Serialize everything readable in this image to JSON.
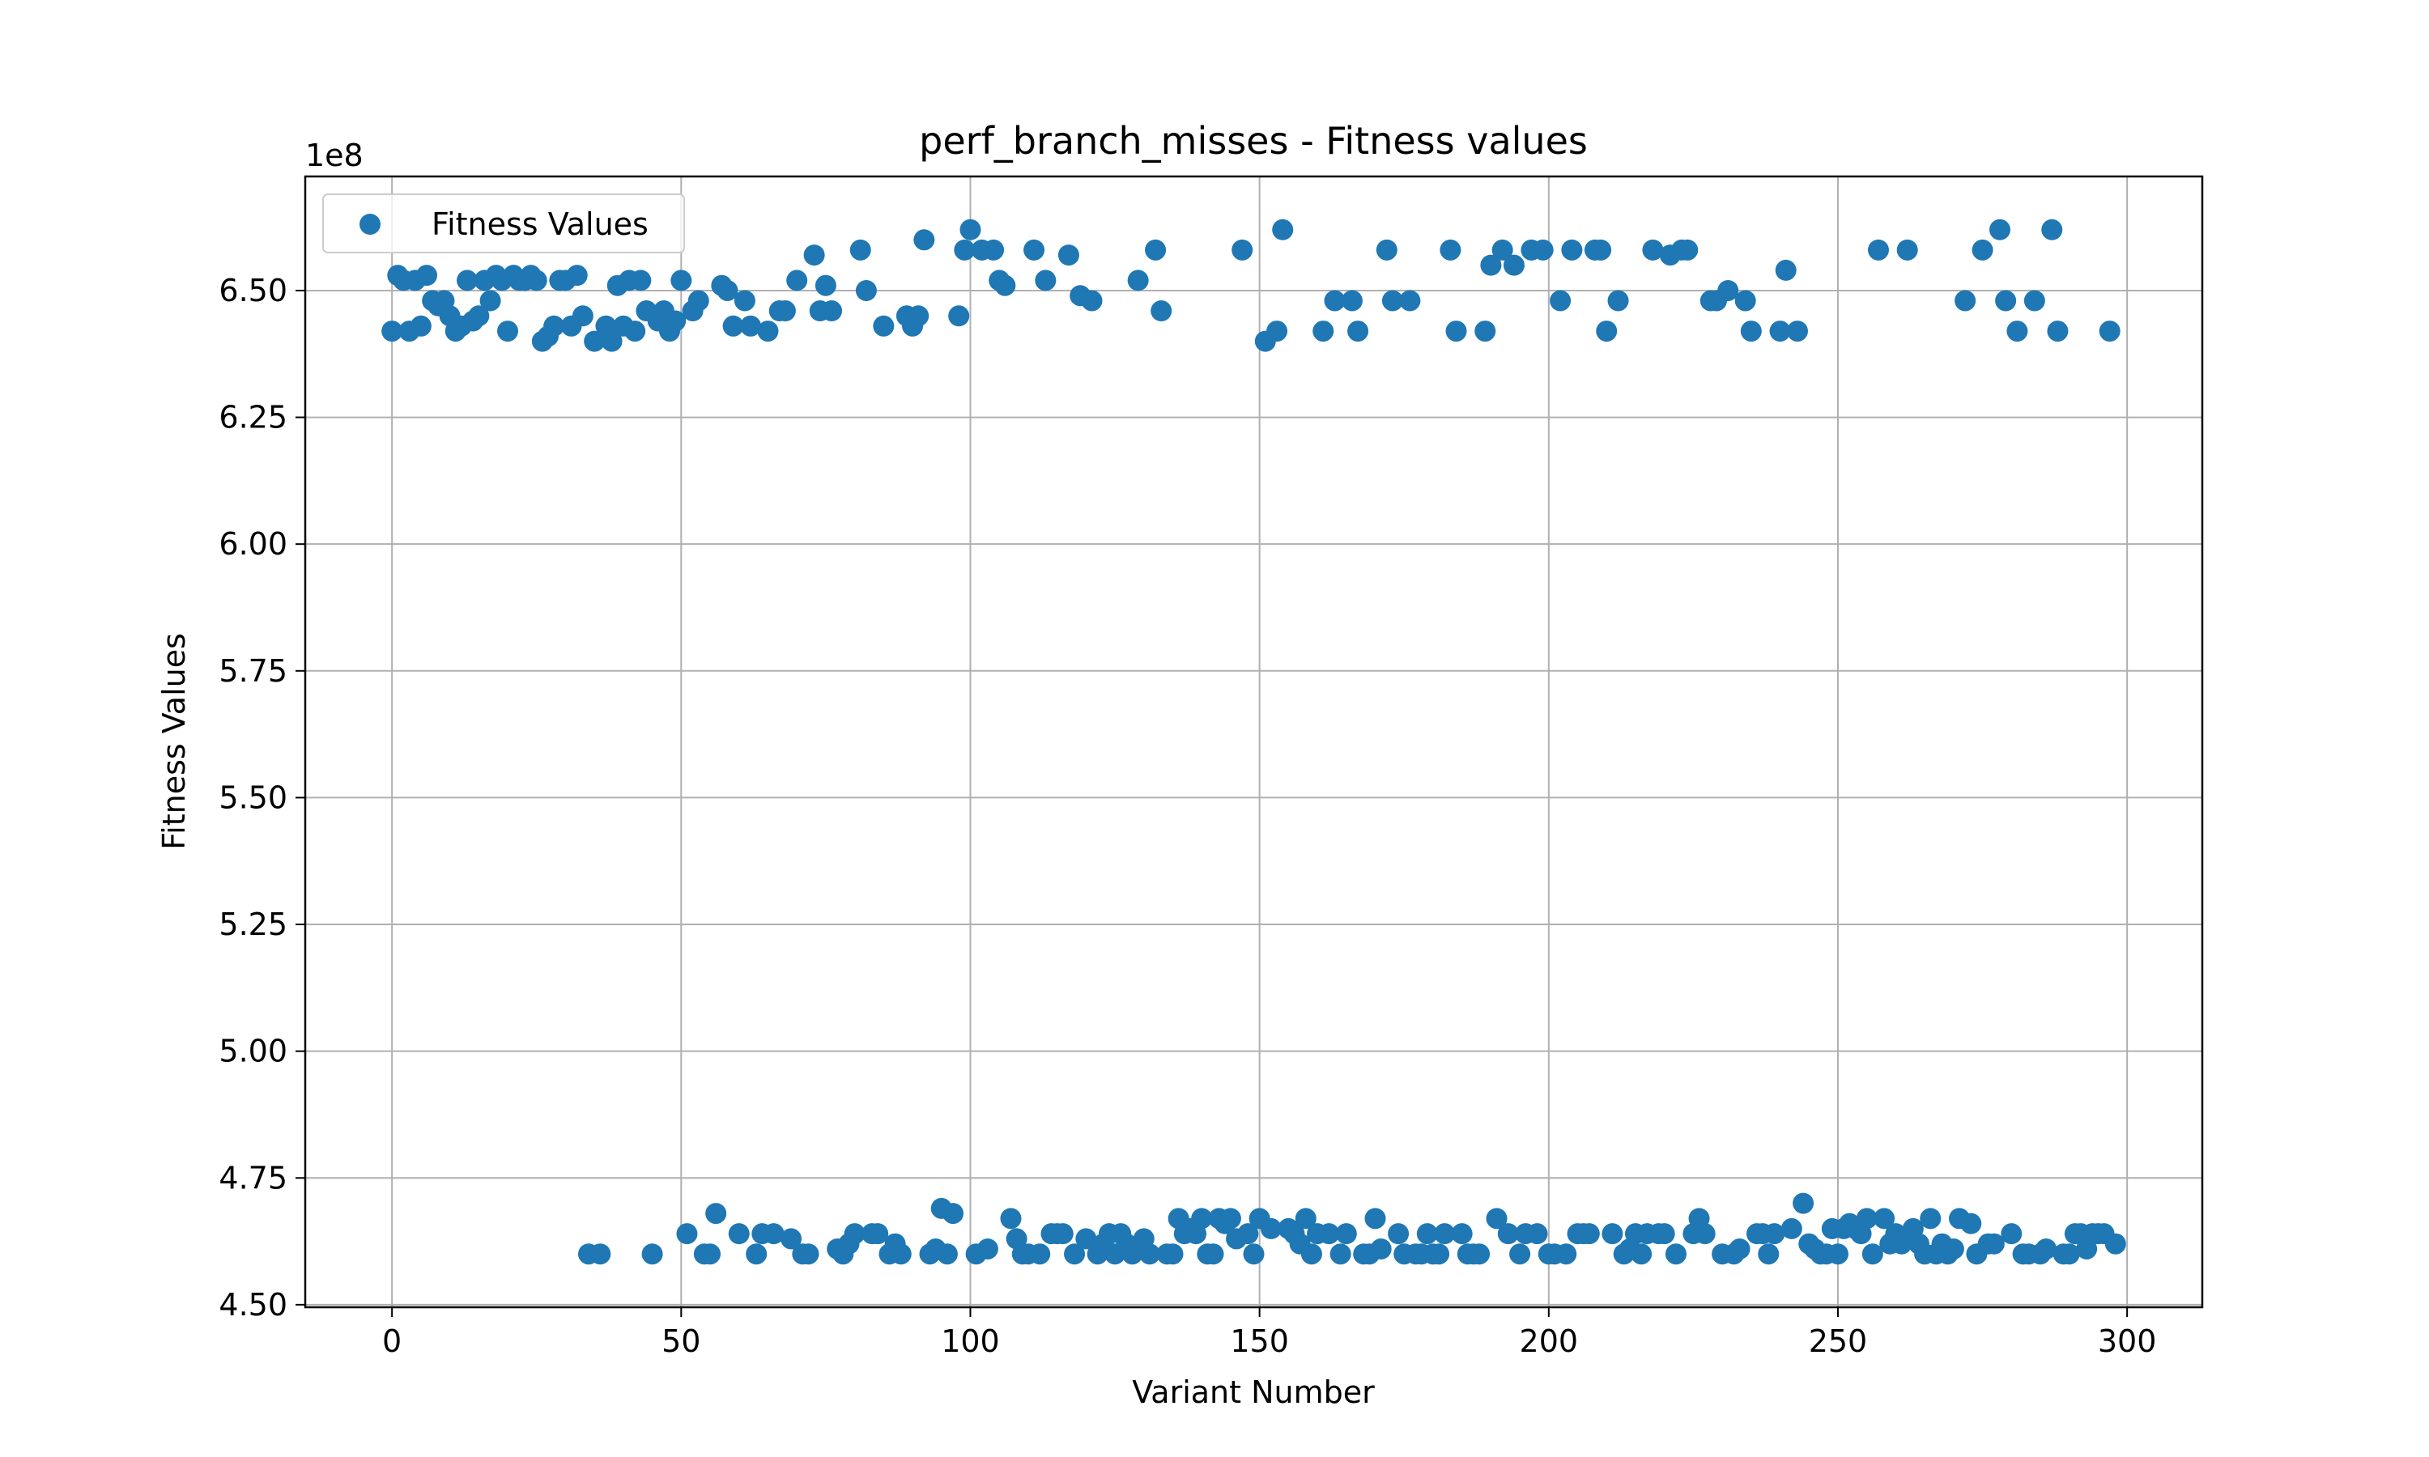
{
  "chart_data": {
    "type": "scatter",
    "title": "perf_branch_misses - Fitness values",
    "xlabel": "Variant Number",
    "ylabel": "Fitness Values",
    "y_offset_label": "1e8",
    "xlim": [
      -15,
      313
    ],
    "ylim": [
      4.495,
      6.725
    ],
    "x_ticks": [
      0,
      50,
      100,
      150,
      200,
      250,
      300
    ],
    "x_tick_labels": [
      "0",
      "50",
      "100",
      "150",
      "200",
      "250",
      "300"
    ],
    "y_ticks": [
      4.5,
      4.75,
      5.0,
      5.25,
      5.5,
      5.75,
      6.0,
      6.25,
      6.5
    ],
    "y_tick_labels": [
      "4.50",
      "4.75",
      "5.00",
      "5.25",
      "5.50",
      "5.75",
      "6.00",
      "6.25",
      "6.50"
    ],
    "grid": true,
    "legend_position": "top-left",
    "series": [
      {
        "name": "Fitness Values",
        "color": "#1f77b4",
        "points": [
          [
            0,
            6.42
          ],
          [
            1,
            6.53
          ],
          [
            2,
            6.52
          ],
          [
            3,
            6.42
          ],
          [
            4,
            6.52
          ],
          [
            5,
            6.43
          ],
          [
            6,
            6.53
          ],
          [
            7,
            6.48
          ],
          [
            8,
            6.47
          ],
          [
            9,
            6.48
          ],
          [
            10,
            6.45
          ],
          [
            11,
            6.42
          ],
          [
            12,
            6.43
          ],
          [
            13,
            6.52
          ],
          [
            14,
            6.44
          ],
          [
            15,
            6.45
          ],
          [
            16,
            6.52
          ],
          [
            17,
            6.48
          ],
          [
            18,
            6.53
          ],
          [
            19,
            6.52
          ],
          [
            20,
            6.42
          ],
          [
            21,
            6.53
          ],
          [
            22,
            6.52
          ],
          [
            23,
            6.52
          ],
          [
            24,
            6.53
          ],
          [
            25,
            6.52
          ],
          [
            26,
            6.4
          ],
          [
            27,
            6.41
          ],
          [
            28,
            6.43
          ],
          [
            29,
            6.52
          ],
          [
            30,
            6.52
          ],
          [
            31,
            6.43
          ],
          [
            32,
            6.53
          ],
          [
            33,
            6.45
          ],
          [
            34,
            4.6
          ],
          [
            35,
            6.4
          ],
          [
            36,
            4.6
          ],
          [
            37,
            6.43
          ],
          [
            38,
            6.4
          ],
          [
            39,
            6.51
          ],
          [
            40,
            6.43
          ],
          [
            41,
            6.52
          ],
          [
            42,
            6.42
          ],
          [
            43,
            6.52
          ],
          [
            44,
            6.46
          ],
          [
            45,
            4.6
          ],
          [
            46,
            6.44
          ],
          [
            47,
            6.46
          ],
          [
            48,
            6.42
          ],
          [
            49,
            6.44
          ],
          [
            50,
            6.52
          ],
          [
            51,
            4.64
          ],
          [
            52,
            6.46
          ],
          [
            53,
            6.48
          ],
          [
            54,
            4.6
          ],
          [
            55,
            4.6
          ],
          [
            56,
            4.68
          ],
          [
            57,
            6.51
          ],
          [
            58,
            6.5
          ],
          [
            59,
            6.43
          ],
          [
            60,
            4.64
          ],
          [
            61,
            6.48
          ],
          [
            62,
            6.43
          ],
          [
            63,
            4.6
          ],
          [
            64,
            4.64
          ],
          [
            65,
            6.42
          ],
          [
            66,
            4.64
          ],
          [
            67,
            6.46
          ],
          [
            68,
            6.46
          ],
          [
            69,
            4.63
          ],
          [
            70,
            6.52
          ],
          [
            71,
            4.6
          ],
          [
            72,
            4.6
          ],
          [
            73,
            6.57
          ],
          [
            74,
            6.46
          ],
          [
            75,
            6.51
          ],
          [
            76,
            6.46
          ],
          [
            77,
            4.61
          ],
          [
            78,
            4.6
          ],
          [
            79,
            4.62
          ],
          [
            80,
            4.64
          ],
          [
            81,
            6.58
          ],
          [
            82,
            6.5
          ],
          [
            83,
            4.64
          ],
          [
            84,
            4.64
          ],
          [
            85,
            6.43
          ],
          [
            86,
            4.6
          ],
          [
            87,
            4.62
          ],
          [
            88,
            4.6
          ],
          [
            89,
            6.45
          ],
          [
            90,
            6.43
          ],
          [
            91,
            6.45
          ],
          [
            92,
            6.6
          ],
          [
            93,
            4.6
          ],
          [
            94,
            4.61
          ],
          [
            95,
            4.69
          ],
          [
            96,
            4.6
          ],
          [
            97,
            4.68
          ],
          [
            98,
            6.45
          ],
          [
            99,
            6.58
          ],
          [
            100,
            6.62
          ],
          [
            101,
            4.6
          ],
          [
            102,
            6.58
          ],
          [
            103,
            4.61
          ],
          [
            104,
            6.58
          ],
          [
            105,
            6.52
          ],
          [
            106,
            6.51
          ],
          [
            107,
            4.67
          ],
          [
            108,
            4.63
          ],
          [
            109,
            4.6
          ],
          [
            110,
            4.6
          ],
          [
            111,
            6.58
          ],
          [
            112,
            4.6
          ],
          [
            113,
            6.52
          ],
          [
            114,
            4.64
          ],
          [
            115,
            4.64
          ],
          [
            116,
            4.64
          ],
          [
            117,
            6.57
          ],
          [
            118,
            4.6
          ],
          [
            119,
            6.49
          ],
          [
            120,
            4.63
          ],
          [
            121,
            6.48
          ],
          [
            122,
            4.6
          ],
          [
            123,
            4.62
          ],
          [
            124,
            4.64
          ],
          [
            125,
            4.6
          ],
          [
            126,
            4.64
          ],
          [
            127,
            4.62
          ],
          [
            128,
            4.6
          ],
          [
            129,
            6.52
          ],
          [
            130,
            4.63
          ],
          [
            131,
            4.6
          ],
          [
            132,
            6.58
          ],
          [
            133,
            6.46
          ],
          [
            134,
            4.6
          ],
          [
            135,
            4.6
          ],
          [
            136,
            4.67
          ],
          [
            137,
            4.64
          ],
          [
            138,
            4.65
          ],
          [
            139,
            4.64
          ],
          [
            140,
            4.67
          ],
          [
            141,
            4.6
          ],
          [
            142,
            4.6
          ],
          [
            143,
            4.67
          ],
          [
            144,
            4.66
          ],
          [
            145,
            4.67
          ],
          [
            146,
            4.63
          ],
          [
            147,
            6.58
          ],
          [
            148,
            4.64
          ],
          [
            149,
            4.6
          ],
          [
            150,
            4.67
          ],
          [
            151,
            6.4
          ],
          [
            152,
            4.65
          ],
          [
            153,
            6.42
          ],
          [
            154,
            6.62
          ],
          [
            155,
            4.65
          ],
          [
            156,
            4.64
          ],
          [
            157,
            4.62
          ],
          [
            158,
            4.67
          ],
          [
            159,
            4.6
          ],
          [
            160,
            4.64
          ],
          [
            161,
            6.42
          ],
          [
            162,
            4.64
          ],
          [
            163,
            6.48
          ],
          [
            164,
            4.6
          ],
          [
            165,
            4.64
          ],
          [
            166,
            6.48
          ],
          [
            167,
            6.42
          ],
          [
            168,
            4.6
          ],
          [
            169,
            4.6
          ],
          [
            170,
            4.67
          ],
          [
            171,
            4.61
          ],
          [
            172,
            6.58
          ],
          [
            173,
            6.48
          ],
          [
            174,
            4.64
          ],
          [
            175,
            4.6
          ],
          [
            176,
            6.48
          ],
          [
            177,
            4.6
          ],
          [
            178,
            4.6
          ],
          [
            179,
            4.64
          ],
          [
            180,
            4.6
          ],
          [
            181,
            4.6
          ],
          [
            182,
            4.64
          ],
          [
            183,
            6.58
          ],
          [
            184,
            6.42
          ],
          [
            185,
            4.64
          ],
          [
            186,
            4.6
          ],
          [
            187,
            4.6
          ],
          [
            188,
            4.6
          ],
          [
            189,
            6.42
          ],
          [
            190,
            6.55
          ],
          [
            191,
            4.67
          ],
          [
            192,
            6.58
          ],
          [
            193,
            4.64
          ],
          [
            194,
            6.55
          ],
          [
            195,
            4.6
          ],
          [
            196,
            4.64
          ],
          [
            197,
            6.58
          ],
          [
            198,
            4.64
          ],
          [
            199,
            6.58
          ],
          [
            200,
            4.6
          ],
          [
            201,
            4.6
          ],
          [
            202,
            6.48
          ],
          [
            203,
            4.6
          ],
          [
            204,
            6.58
          ],
          [
            205,
            4.64
          ],
          [
            206,
            4.64
          ],
          [
            207,
            4.64
          ],
          [
            208,
            6.58
          ],
          [
            209,
            6.58
          ],
          [
            210,
            6.42
          ],
          [
            211,
            4.64
          ],
          [
            212,
            6.48
          ],
          [
            213,
            4.6
          ],
          [
            214,
            4.61
          ],
          [
            215,
            4.64
          ],
          [
            216,
            4.6
          ],
          [
            217,
            4.64
          ],
          [
            218,
            6.58
          ],
          [
            219,
            4.64
          ],
          [
            220,
            4.64
          ],
          [
            221,
            6.57
          ],
          [
            222,
            4.6
          ],
          [
            223,
            6.58
          ],
          [
            224,
            6.58
          ],
          [
            225,
            4.64
          ],
          [
            226,
            4.67
          ],
          [
            227,
            4.64
          ],
          [
            228,
            6.48
          ],
          [
            229,
            6.48
          ],
          [
            230,
            4.6
          ],
          [
            231,
            6.5
          ],
          [
            232,
            4.6
          ],
          [
            233,
            4.61
          ],
          [
            234,
            6.48
          ],
          [
            235,
            6.42
          ],
          [
            236,
            4.64
          ],
          [
            237,
            4.64
          ],
          [
            238,
            4.6
          ],
          [
            239,
            4.64
          ],
          [
            240,
            6.42
          ],
          [
            241,
            6.54
          ],
          [
            242,
            4.65
          ],
          [
            243,
            6.42
          ],
          [
            244,
            4.7
          ],
          [
            245,
            4.62
          ],
          [
            246,
            4.61
          ],
          [
            247,
            4.6
          ],
          [
            248,
            4.6
          ],
          [
            249,
            4.65
          ],
          [
            250,
            4.6
          ],
          [
            251,
            4.65
          ],
          [
            252,
            4.66
          ],
          [
            253,
            4.65
          ],
          [
            254,
            4.64
          ],
          [
            255,
            4.67
          ],
          [
            256,
            4.6
          ],
          [
            257,
            6.58
          ],
          [
            258,
            4.67
          ],
          [
            259,
            4.62
          ],
          [
            260,
            4.64
          ],
          [
            261,
            4.62
          ],
          [
            262,
            6.58
          ],
          [
            263,
            4.65
          ],
          [
            264,
            4.62
          ],
          [
            265,
            4.6
          ],
          [
            266,
            4.67
          ],
          [
            267,
            4.6
          ],
          [
            268,
            4.62
          ],
          [
            269,
            4.6
          ],
          [
            270,
            4.61
          ],
          [
            271,
            4.67
          ],
          [
            272,
            6.48
          ],
          [
            273,
            4.66
          ],
          [
            274,
            4.6
          ],
          [
            275,
            6.58
          ],
          [
            276,
            4.62
          ],
          [
            277,
            4.62
          ],
          [
            278,
            6.62
          ],
          [
            279,
            6.48
          ],
          [
            280,
            4.64
          ],
          [
            281,
            6.42
          ],
          [
            282,
            4.6
          ],
          [
            283,
            4.6
          ],
          [
            284,
            6.48
          ],
          [
            285,
            4.6
          ],
          [
            286,
            4.61
          ],
          [
            287,
            6.62
          ],
          [
            288,
            6.42
          ],
          [
            289,
            4.6
          ],
          [
            290,
            4.6
          ],
          [
            291,
            4.64
          ],
          [
            292,
            4.64
          ],
          [
            293,
            4.61
          ],
          [
            294,
            4.64
          ],
          [
            295,
            4.64
          ],
          [
            296,
            4.64
          ],
          [
            297,
            6.42
          ],
          [
            298,
            4.62
          ]
        ]
      }
    ]
  }
}
